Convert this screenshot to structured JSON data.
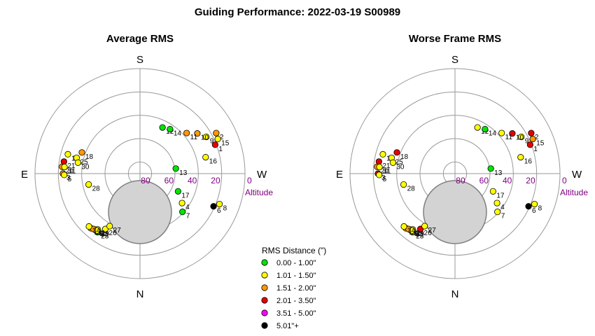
{
  "title": "Guiding Performance: 2022-03-19 S00989",
  "directions": {
    "north": "N",
    "south": "S",
    "east": "E",
    "west": "W"
  },
  "altitude_label": "Altitude",
  "legend": {
    "title": "RMS Distance (\")",
    "items": [
      {
        "label": "0.00 - 1.00\"",
        "color": "#00e600"
      },
      {
        "label": "1.01 - 1.50\"",
        "color": "#ffff00"
      },
      {
        "label": "1.51 - 2.00\"",
        "color": "#ff9900"
      },
      {
        "label": "2.01 - 3.50\"",
        "color": "#e60000"
      },
      {
        "label": "3.51 - 5.00\"",
        "color": "#ff00ff"
      },
      {
        "label": "5.01\"+",
        "color": "#000000"
      }
    ]
  },
  "chart_data": [
    {
      "type": "scatter",
      "projection": "polar",
      "title": "Average RMS",
      "radial_axis": {
        "label": "Altitude",
        "ticks": [
          80,
          60,
          40,
          20,
          0
        ],
        "range": [
          90,
          0
        ]
      },
      "excluded_zone_note": "grey disc (altitude limit region)",
      "points": [
        {
          "label": "1",
          "az": 249,
          "alt": 21,
          "cat": 3
        },
        {
          "label": "2",
          "az": 242,
          "alt": 16,
          "cat": 2
        },
        {
          "label": "4",
          "az": 305,
          "alt": 46,
          "cat": 1
        },
        {
          "label": "6",
          "az": 294,
          "alt": 21,
          "cat": 5
        },
        {
          "label": "7",
          "az": 312,
          "alt": 41,
          "cat": 0
        },
        {
          "label": "8",
          "az": 291,
          "alt": 17,
          "cat": 1
        },
        {
          "label": "9",
          "az": 241,
          "alt": 25,
          "cat": 1
        },
        {
          "label": "10",
          "az": 235,
          "alt": 30,
          "cat": 2
        },
        {
          "label": "11",
          "az": 229,
          "alt": 37,
          "cat": 2
        },
        {
          "label": "12",
          "az": 206,
          "alt": 46,
          "cat": 0
        },
        {
          "label": "13",
          "az": 262,
          "alt": 59,
          "cat": 0
        },
        {
          "label": "14",
          "az": 214,
          "alt": 44,
          "cat": 0
        },
        {
          "label": "15",
          "az": 246,
          "alt": 17,
          "cat": 1
        },
        {
          "label": "16",
          "az": 256,
          "alt": 32,
          "cat": 1
        },
        {
          "label": "17",
          "az": 295,
          "alt": 54,
          "cat": 0
        },
        {
          "label": "18",
          "az": 110,
          "alt": 37,
          "cat": 2
        },
        {
          "label": "19",
          "az": 105,
          "alt": 26,
          "cat": 1
        },
        {
          "label": "20",
          "az": 95,
          "alt": 23,
          "cat": 2
        },
        {
          "label": "21",
          "az": 99,
          "alt": 24,
          "cat": 3
        },
        {
          "label": "22",
          "az": 38,
          "alt": 29,
          "cat": 1
        },
        {
          "label": "23",
          "az": 36,
          "alt": 28,
          "cat": 0
        },
        {
          "label": "24",
          "az": 42,
          "alt": 27,
          "cat": 2
        },
        {
          "label": "25",
          "az": 104,
          "alt": 34,
          "cat": 1
        },
        {
          "label": "26",
          "az": 32,
          "alt": 34,
          "cat": 1
        },
        {
          "label": "27",
          "az": 30,
          "alt": 38,
          "cat": 1
        },
        {
          "label": "28",
          "az": 78,
          "alt": 45,
          "cat": 1
        },
        {
          "label": "29",
          "az": 37,
          "alt": 30,
          "cat": 1
        },
        {
          "label": "30",
          "az": 100,
          "alt": 36,
          "cat": 1
        },
        {
          "label": "31",
          "az": 95,
          "alt": 25,
          "cat": 1
        },
        {
          "label": "32",
          "az": 40,
          "alt": 28,
          "cat": 2
        },
        {
          "label": "33",
          "az": 37,
          "alt": 29,
          "cat": 1
        },
        {
          "label": "34",
          "az": 44,
          "alt": 27,
          "cat": 1
        },
        {
          "label": "3",
          "az": 90,
          "alt": 24,
          "cat": 2
        },
        {
          "label": "5",
          "az": 89,
          "alt": 25,
          "cat": 1
        }
      ]
    },
    {
      "type": "scatter",
      "projection": "polar",
      "title": "Worse Frame RMS",
      "radial_axis": {
        "label": "Altitude",
        "ticks": [
          80,
          60,
          40,
          20,
          0
        ],
        "range": [
          90,
          0
        ]
      },
      "excluded_zone_note": "grey disc (altitude limit region)",
      "points": [
        {
          "label": "1",
          "az": 249,
          "alt": 21,
          "cat": 3
        },
        {
          "label": "2",
          "az": 242,
          "alt": 16,
          "cat": 3
        },
        {
          "label": "4",
          "az": 305,
          "alt": 46,
          "cat": 1
        },
        {
          "label": "6",
          "az": 294,
          "alt": 21,
          "cat": 5
        },
        {
          "label": "7",
          "az": 312,
          "alt": 41,
          "cat": 1
        },
        {
          "label": "8",
          "az": 291,
          "alt": 17,
          "cat": 1
        },
        {
          "label": "9",
          "az": 241,
          "alt": 25,
          "cat": 1
        },
        {
          "label": "10",
          "az": 235,
          "alt": 30,
          "cat": 3
        },
        {
          "label": "11",
          "az": 229,
          "alt": 37,
          "cat": 1
        },
        {
          "label": "12",
          "az": 206,
          "alt": 46,
          "cat": 1
        },
        {
          "label": "13",
          "az": 262,
          "alt": 59,
          "cat": 0
        },
        {
          "label": "14",
          "az": 214,
          "alt": 44,
          "cat": 0
        },
        {
          "label": "15",
          "az": 246,
          "alt": 17,
          "cat": 2
        },
        {
          "label": "16",
          "az": 256,
          "alt": 32,
          "cat": 1
        },
        {
          "label": "17",
          "az": 295,
          "alt": 54,
          "cat": 1
        },
        {
          "label": "18",
          "az": 110,
          "alt": 37,
          "cat": 3
        },
        {
          "label": "19",
          "az": 105,
          "alt": 26,
          "cat": 1
        },
        {
          "label": "20",
          "az": 95,
          "alt": 23,
          "cat": 2
        },
        {
          "label": "21",
          "az": 99,
          "alt": 24,
          "cat": 3
        },
        {
          "label": "22",
          "az": 38,
          "alt": 29,
          "cat": 1
        },
        {
          "label": "23",
          "az": 36,
          "alt": 28,
          "cat": 1
        },
        {
          "label": "24",
          "az": 42,
          "alt": 27,
          "cat": 2
        },
        {
          "label": "25",
          "az": 104,
          "alt": 34,
          "cat": 1
        },
        {
          "label": "26",
          "az": 32,
          "alt": 34,
          "cat": 3
        },
        {
          "label": "27",
          "az": 30,
          "alt": 38,
          "cat": 1
        },
        {
          "label": "28",
          "az": 78,
          "alt": 45,
          "cat": 1
        },
        {
          "label": "29",
          "az": 37,
          "alt": 30,
          "cat": 1
        },
        {
          "label": "30",
          "az": 100,
          "alt": 36,
          "cat": 1
        },
        {
          "label": "31",
          "az": 95,
          "alt": 25,
          "cat": 1
        },
        {
          "label": "32",
          "az": 40,
          "alt": 28,
          "cat": 2
        },
        {
          "label": "33",
          "az": 37,
          "alt": 29,
          "cat": 1
        },
        {
          "label": "34",
          "az": 44,
          "alt": 27,
          "cat": 1
        },
        {
          "label": "3",
          "az": 90,
          "alt": 24,
          "cat": 3
        },
        {
          "label": "5",
          "az": 89,
          "alt": 25,
          "cat": 1
        }
      ]
    }
  ]
}
